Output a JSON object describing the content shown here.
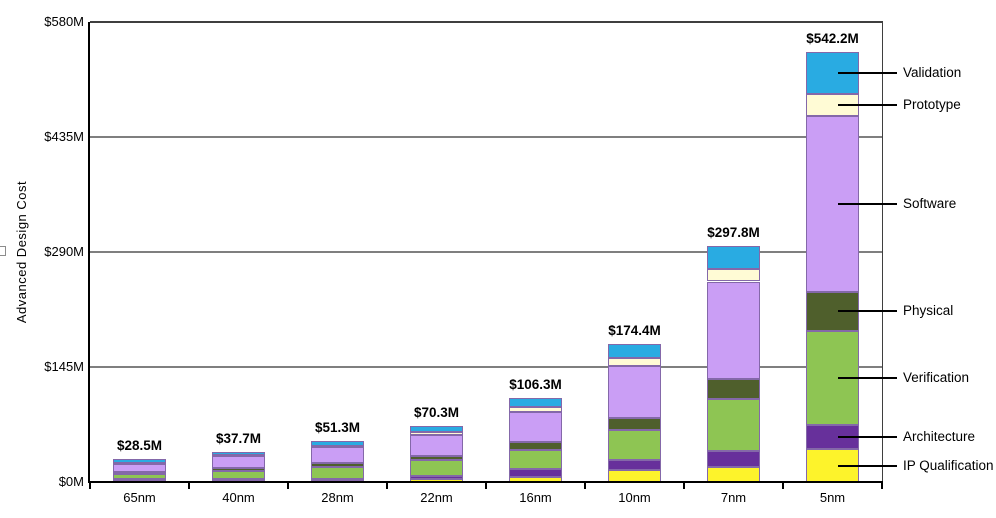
{
  "chart_data": {
    "type": "bar",
    "subtype": "stacked",
    "title": "",
    "ylabel": "Advanced Design Cost",
    "xlabel": "",
    "categories": [
      "65nm",
      "40nm",
      "28nm",
      "22nm",
      "16nm",
      "10nm",
      "7nm",
      "5nm"
    ],
    "totals_labels": [
      "$28.5M",
      "$37.7M",
      "$51.3M",
      "$70.3M",
      "$106.3M",
      "$174.4M",
      "$297.8M",
      "$542.2M"
    ],
    "totals_values": [
      28.5,
      37.7,
      51.3,
      70.3,
      106.3,
      174.4,
      297.8,
      542.2
    ],
    "series": [
      {
        "name": "IP Qualification",
        "color": "#fdf32b",
        "values": [
          0.9,
          1.3,
          1.9,
          3.4,
          6.3,
          15.1,
          18.9,
          41.6
        ]
      },
      {
        "name": "Architecture",
        "color": "#67309b",
        "values": [
          2.4,
          2.5,
          2.5,
          4.3,
          10.6,
          12.6,
          20.2,
          30.3
        ]
      },
      {
        "name": "Verification",
        "color": "#8ec553",
        "values": [
          6.3,
          10.4,
          14.7,
          20.1,
          23.1,
          37.8,
          65.1,
          118.5
        ]
      },
      {
        "name": "Physical",
        "color": "#4f5f2c",
        "values": [
          2.9,
          3.8,
          5.0,
          5.5,
          10.5,
          14.7,
          26.1,
          49.2
        ]
      },
      {
        "name": "Software",
        "color": "#ca9ef5",
        "values": [
          10.5,
          14.5,
          20.2,
          26.4,
          38.2,
          65.5,
          122.5,
          221.9
        ]
      },
      {
        "name": "Prototype",
        "color": "#fffbd5",
        "values": [
          1.0,
          1.0,
          1.6,
          2.9,
          5.5,
          11.0,
          15.6,
          28.1
        ]
      },
      {
        "name": "Validation",
        "color": "#29abe2",
        "values": [
          4.5,
          4.2,
          5.4,
          7.7,
          12.1,
          17.7,
          29.4,
          52.6
        ]
      }
    ],
    "y_axis": {
      "ticks": [
        "$0M",
        "$145M",
        "$290M",
        "$435M",
        "$580M"
      ],
      "tick_values": [
        0,
        145,
        290,
        435,
        580
      ],
      "max": 580
    },
    "legend": {
      "position": "right-callouts",
      "labels": [
        "Validation",
        "Prototype",
        "Software",
        "Physical",
        "Verification",
        "Architecture",
        "IP Qualification"
      ]
    },
    "grid": "horizontal",
    "bar_border_color": "#8468a9",
    "grid_color": "#7f7f7f",
    "axis_color": "#000000"
  }
}
